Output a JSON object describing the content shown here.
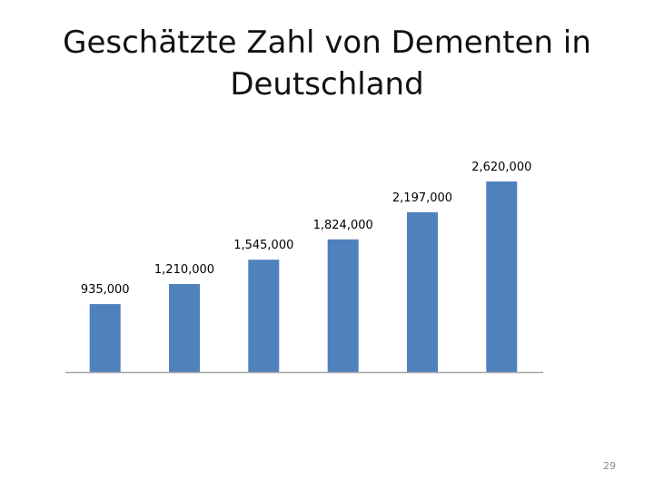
{
  "slide": {
    "title_lines": [
      "Geschätzte Zahl von Dementen in",
      "Deutschland"
    ],
    "slide_number": "29"
  },
  "colors": {
    "bar": "#4f81bd",
    "axis": "#a6a6a6",
    "data_label": "#000000"
  },
  "chart_data": {
    "type": "bar",
    "title": "Geschätzte Zahl von Dementen in Deutschland",
    "categories": [
      "",
      "",
      "",
      "",
      "",
      ""
    ],
    "values": [
      935000,
      1210000,
      1545000,
      1824000,
      2197000,
      2620000
    ],
    "data_labels": [
      "935,000",
      "1,210,000",
      "1,545,000",
      "1,824,000",
      "2,197,000",
      "2,620,000"
    ],
    "xlabel": "",
    "ylabel": "",
    "ylim": [
      0,
      2620000
    ],
    "grid": false,
    "legend": "none"
  }
}
